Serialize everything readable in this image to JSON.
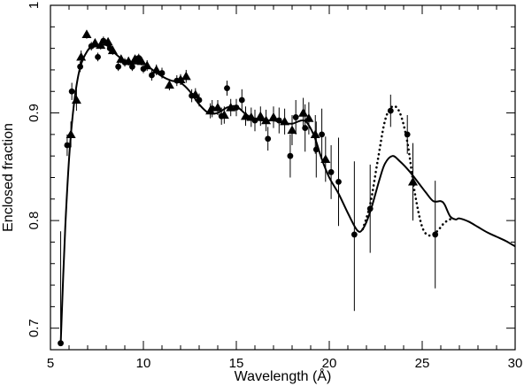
{
  "chart_data": {
    "type": "scatter",
    "title": "",
    "xlabel": "Wavelength (Å)",
    "ylabel": "Enclosed fraction",
    "xlim": [
      5,
      30
    ],
    "ylim": [
      0.68,
      1.0
    ],
    "grid": false,
    "legend": "none",
    "x_ticks": [
      5,
      10,
      15,
      20,
      25,
      30
    ],
    "x_tick_labels": [
      "5",
      "10",
      "15",
      "20",
      "25",
      "30"
    ],
    "y_ticks": [
      0.7,
      0.8,
      0.9,
      1.0
    ],
    "y_tick_labels": [
      "0.7",
      "0.8",
      "0.9",
      "1"
    ],
    "series": [
      {
        "marker": "circle",
        "points": [
          {
            "x": 5.55,
            "y": 0.686,
            "ylo": 0.684,
            "yhi": 0.79
          },
          {
            "x": 5.9,
            "y": 0.87,
            "ylo": 0.86,
            "yhi": 0.88
          },
          {
            "x": 6.15,
            "y": 0.92,
            "ylo": 0.912,
            "yhi": 0.928
          },
          {
            "x": 6.6,
            "y": 0.943,
            "ylo": 0.938,
            "yhi": 0.948
          },
          {
            "x": 7.2,
            "y": 0.962,
            "ylo": 0.958,
            "yhi": 0.966
          },
          {
            "x": 7.55,
            "y": 0.952,
            "ylo": 0.948,
            "yhi": 0.956
          },
          {
            "x": 7.85,
            "y": 0.967,
            "ylo": 0.963,
            "yhi": 0.971
          },
          {
            "x": 8.2,
            "y": 0.96,
            "ylo": 0.956,
            "yhi": 0.964
          },
          {
            "x": 8.65,
            "y": 0.943,
            "ylo": 0.939,
            "yhi": 0.947
          },
          {
            "x": 9.0,
            "y": 0.947,
            "ylo": 0.943,
            "yhi": 0.951
          },
          {
            "x": 9.4,
            "y": 0.943,
            "ylo": 0.939,
            "yhi": 0.947
          },
          {
            "x": 9.75,
            "y": 0.951,
            "ylo": 0.947,
            "yhi": 0.955
          },
          {
            "x": 10.0,
            "y": 0.941,
            "ylo": 0.937,
            "yhi": 0.945
          },
          {
            "x": 10.45,
            "y": 0.935,
            "ylo": 0.93,
            "yhi": 0.94
          },
          {
            "x": 11.0,
            "y": 0.937,
            "ylo": 0.932,
            "yhi": 0.942
          },
          {
            "x": 11.8,
            "y": 0.93,
            "ylo": 0.925,
            "yhi": 0.935
          },
          {
            "x": 12.6,
            "y": 0.916,
            "ylo": 0.91,
            "yhi": 0.922
          },
          {
            "x": 13.0,
            "y": 0.912,
            "ylo": 0.906,
            "yhi": 0.918
          },
          {
            "x": 13.7,
            "y": 0.904,
            "ylo": 0.896,
            "yhi": 0.912
          },
          {
            "x": 14.2,
            "y": 0.897,
            "ylo": 0.889,
            "yhi": 0.905
          },
          {
            "x": 14.5,
            "y": 0.923,
            "ylo": 0.916,
            "yhi": 0.93
          },
          {
            "x": 15.0,
            "y": 0.905,
            "ylo": 0.897,
            "yhi": 0.913
          },
          {
            "x": 15.3,
            "y": 0.912,
            "ylo": 0.902,
            "yhi": 0.922
          },
          {
            "x": 16.0,
            "y": 0.893,
            "ylo": 0.883,
            "yhi": 0.903
          },
          {
            "x": 16.7,
            "y": 0.876,
            "ylo": 0.865,
            "yhi": 0.887
          },
          {
            "x": 17.3,
            "y": 0.893,
            "ylo": 0.881,
            "yhi": 0.905
          },
          {
            "x": 17.9,
            "y": 0.86,
            "ylo": 0.84,
            "yhi": 0.88
          },
          {
            "x": 18.2,
            "y": 0.896,
            "ylo": 0.88,
            "yhi": 0.912
          },
          {
            "x": 18.7,
            "y": 0.886,
            "ylo": 0.864,
            "yhi": 0.908
          },
          {
            "x": 19.3,
            "y": 0.866,
            "ylo": 0.84,
            "yhi": 0.892
          },
          {
            "x": 19.6,
            "y": 0.88,
            "ylo": 0.856,
            "yhi": 0.904
          },
          {
            "x": 20.1,
            "y": 0.845,
            "ylo": 0.82,
            "yhi": 0.87
          },
          {
            "x": 20.5,
            "y": 0.836,
            "ylo": 0.795,
            "yhi": 0.877
          },
          {
            "x": 21.35,
            "y": 0.787,
            "ylo": 0.716,
            "yhi": 0.855
          },
          {
            "x": 22.2,
            "y": 0.811,
            "ylo": 0.77,
            "yhi": 0.852
          },
          {
            "x": 23.3,
            "y": 0.902,
            "ylo": 0.887,
            "yhi": 0.917
          },
          {
            "x": 24.2,
            "y": 0.88,
            "ylo": 0.862,
            "yhi": 0.898
          },
          {
            "x": 25.7,
            "y": 0.787,
            "ylo": 0.737,
            "yhi": 0.837
          }
        ]
      },
      {
        "marker": "triangle",
        "points": [
          {
            "x": 6.1,
            "y": 0.88,
            "ylo": 0.868,
            "yhi": 0.892
          },
          {
            "x": 6.4,
            "y": 0.912,
            "ylo": 0.902,
            "yhi": 0.922
          },
          {
            "x": 6.65,
            "y": 0.952,
            "ylo": 0.946,
            "yhi": 0.958
          },
          {
            "x": 6.95,
            "y": 0.973,
            "ylo": 0.969,
            "yhi": 0.977
          },
          {
            "x": 7.4,
            "y": 0.965,
            "ylo": 0.961,
            "yhi": 0.969
          },
          {
            "x": 7.7,
            "y": 0.963,
            "ylo": 0.959,
            "yhi": 0.967
          },
          {
            "x": 8.1,
            "y": 0.966,
            "ylo": 0.962,
            "yhi": 0.97
          },
          {
            "x": 8.35,
            "y": 0.958,
            "ylo": 0.954,
            "yhi": 0.962
          },
          {
            "x": 8.8,
            "y": 0.95,
            "ylo": 0.946,
            "yhi": 0.954
          },
          {
            "x": 9.2,
            "y": 0.948,
            "ylo": 0.944,
            "yhi": 0.952
          },
          {
            "x": 9.55,
            "y": 0.95,
            "ylo": 0.946,
            "yhi": 0.954
          },
          {
            "x": 9.9,
            "y": 0.948,
            "ylo": 0.944,
            "yhi": 0.952
          },
          {
            "x": 10.2,
            "y": 0.944,
            "ylo": 0.939,
            "yhi": 0.949
          },
          {
            "x": 10.7,
            "y": 0.94,
            "ylo": 0.935,
            "yhi": 0.945
          },
          {
            "x": 11.4,
            "y": 0.926,
            "ylo": 0.921,
            "yhi": 0.931
          },
          {
            "x": 12.0,
            "y": 0.931,
            "ylo": 0.926,
            "yhi": 0.936
          },
          {
            "x": 12.3,
            "y": 0.934,
            "ylo": 0.928,
            "yhi": 0.94
          },
          {
            "x": 12.8,
            "y": 0.917,
            "ylo": 0.911,
            "yhi": 0.923
          },
          {
            "x": 13.6,
            "y": 0.902,
            "ylo": 0.895,
            "yhi": 0.909
          },
          {
            "x": 14.0,
            "y": 0.905,
            "ylo": 0.898,
            "yhi": 0.912
          },
          {
            "x": 14.35,
            "y": 0.898,
            "ylo": 0.89,
            "yhi": 0.906
          },
          {
            "x": 14.7,
            "y": 0.905,
            "ylo": 0.897,
            "yhi": 0.913
          },
          {
            "x": 15.5,
            "y": 0.897,
            "ylo": 0.888,
            "yhi": 0.906
          },
          {
            "x": 15.8,
            "y": 0.896,
            "ylo": 0.887,
            "yhi": 0.905
          },
          {
            "x": 16.3,
            "y": 0.897,
            "ylo": 0.888,
            "yhi": 0.906
          },
          {
            "x": 16.6,
            "y": 0.893,
            "ylo": 0.883,
            "yhi": 0.903
          },
          {
            "x": 17.0,
            "y": 0.896,
            "ylo": 0.886,
            "yhi": 0.906
          },
          {
            "x": 17.6,
            "y": 0.892,
            "ylo": 0.88,
            "yhi": 0.904
          },
          {
            "x": 18.0,
            "y": 0.884,
            "ylo": 0.87,
            "yhi": 0.898
          },
          {
            "x": 18.6,
            "y": 0.9,
            "ylo": 0.886,
            "yhi": 0.914
          },
          {
            "x": 18.9,
            "y": 0.895,
            "ylo": 0.88,
            "yhi": 0.91
          },
          {
            "x": 19.25,
            "y": 0.88,
            "ylo": 0.862,
            "yhi": 0.898
          },
          {
            "x": 19.8,
            "y": 0.857,
            "ylo": 0.836,
            "yhi": 0.878
          },
          {
            "x": 24.5,
            "y": 0.836,
            "ylo": 0.8,
            "yhi": 0.872
          }
        ]
      },
      {
        "marker": "none",
        "line": "solid",
        "points": [
          {
            "x": 5.55,
            "y": 0.685
          },
          {
            "x": 5.8,
            "y": 0.795
          },
          {
            "x": 6.1,
            "y": 0.88
          },
          {
            "x": 6.5,
            "y": 0.935
          },
          {
            "x": 7.0,
            "y": 0.958
          },
          {
            "x": 7.5,
            "y": 0.962
          },
          {
            "x": 8.0,
            "y": 0.963
          },
          {
            "x": 8.5,
            "y": 0.955
          },
          {
            "x": 9.0,
            "y": 0.948
          },
          {
            "x": 9.5,
            "y": 0.946
          },
          {
            "x": 10.0,
            "y": 0.946
          },
          {
            "x": 10.5,
            "y": 0.94
          },
          {
            "x": 11.0,
            "y": 0.934
          },
          {
            "x": 11.5,
            "y": 0.93
          },
          {
            "x": 12.0,
            "y": 0.928
          },
          {
            "x": 12.5,
            "y": 0.92
          },
          {
            "x": 13.0,
            "y": 0.908
          },
          {
            "x": 13.5,
            "y": 0.9
          },
          {
            "x": 14.0,
            "y": 0.9
          },
          {
            "x": 14.5,
            "y": 0.905
          },
          {
            "x": 15.0,
            "y": 0.906
          },
          {
            "x": 15.5,
            "y": 0.899
          },
          {
            "x": 16.0,
            "y": 0.894
          },
          {
            "x": 16.5,
            "y": 0.893
          },
          {
            "x": 17.0,
            "y": 0.893
          },
          {
            "x": 17.5,
            "y": 0.891
          },
          {
            "x": 18.0,
            "y": 0.89
          },
          {
            "x": 18.5,
            "y": 0.893
          },
          {
            "x": 18.8,
            "y": 0.891
          },
          {
            "x": 19.2,
            "y": 0.878
          },
          {
            "x": 19.6,
            "y": 0.857
          },
          {
            "x": 20.0,
            "y": 0.84
          },
          {
            "x": 20.5,
            "y": 0.825
          },
          {
            "x": 21.0,
            "y": 0.807
          },
          {
            "x": 21.5,
            "y": 0.791
          },
          {
            "x": 21.8,
            "y": 0.792
          },
          {
            "x": 22.2,
            "y": 0.808
          },
          {
            "x": 22.7,
            "y": 0.838
          },
          {
            "x": 23.0,
            "y": 0.853
          },
          {
            "x": 23.4,
            "y": 0.86
          },
          {
            "x": 23.8,
            "y": 0.855
          },
          {
            "x": 24.3,
            "y": 0.846
          },
          {
            "x": 24.8,
            "y": 0.835
          },
          {
            "x": 25.2,
            "y": 0.826
          },
          {
            "x": 25.6,
            "y": 0.818
          },
          {
            "x": 26.0,
            "y": 0.818
          },
          {
            "x": 26.2,
            "y": 0.815
          },
          {
            "x": 26.5,
            "y": 0.804
          },
          {
            "x": 26.8,
            "y": 0.801
          },
          {
            "x": 27.0,
            "y": 0.802
          },
          {
            "x": 27.5,
            "y": 0.799
          },
          {
            "x": 28.0,
            "y": 0.794
          },
          {
            "x": 28.5,
            "y": 0.789
          },
          {
            "x": 29.0,
            "y": 0.785
          },
          {
            "x": 29.5,
            "y": 0.781
          },
          {
            "x": 30.0,
            "y": 0.776
          }
        ]
      },
      {
        "marker": "none",
        "line": "dotted",
        "points": [
          {
            "x": 21.8,
            "y": 0.792
          },
          {
            "x": 22.2,
            "y": 0.815
          },
          {
            "x": 22.6,
            "y": 0.855
          },
          {
            "x": 23.0,
            "y": 0.893
          },
          {
            "x": 23.4,
            "y": 0.906
          },
          {
            "x": 23.8,
            "y": 0.9
          },
          {
            "x": 24.2,
            "y": 0.873
          },
          {
            "x": 24.6,
            "y": 0.826
          },
          {
            "x": 25.0,
            "y": 0.794
          },
          {
            "x": 25.4,
            "y": 0.786
          },
          {
            "x": 25.8,
            "y": 0.79
          },
          {
            "x": 26.2,
            "y": 0.798
          },
          {
            "x": 26.6,
            "y": 0.802
          }
        ]
      }
    ]
  }
}
